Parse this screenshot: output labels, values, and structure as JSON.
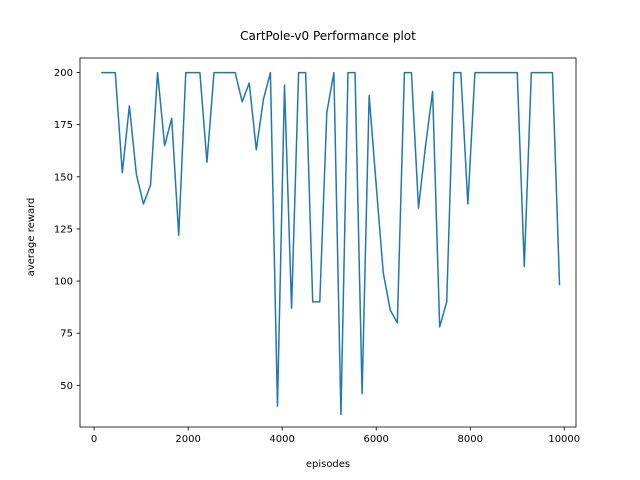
{
  "chart_data": {
    "type": "line",
    "title": "CartPole-v0 Performance plot",
    "xlabel": "episodes",
    "ylabel": "average reward",
    "xlim": [
      -300,
      10250
    ],
    "ylim": [
      30,
      207
    ],
    "xticks": [
      0,
      2000,
      4000,
      6000,
      8000,
      10000
    ],
    "yticks": [
      50,
      75,
      100,
      125,
      150,
      175,
      200
    ],
    "grid": false,
    "line_color": "#1f77b4",
    "series": [
      {
        "x": [
          150,
          300,
          450,
          600,
          750,
          900,
          1050,
          1200,
          1350,
          1500,
          1650,
          1800,
          1950,
          2100,
          2250,
          2400,
          2550,
          2700,
          2850,
          3000,
          3150,
          3300,
          3450,
          3600,
          3750,
          3900,
          4050,
          4200,
          4350,
          4500,
          4650,
          4800,
          4950,
          5100,
          5250,
          5400,
          5550,
          5700,
          5850,
          6000,
          6150,
          6300,
          6450,
          6600,
          6750,
          6900,
          7050,
          7200,
          7350,
          7500,
          7650,
          7800,
          7950,
          8100,
          8250,
          8400,
          8550,
          8700,
          8850,
          9000,
          9150,
          9300,
          9450,
          9600,
          9750,
          9900
        ],
        "y": [
          200,
          200,
          200,
          152,
          184,
          151,
          137,
          146,
          200,
          165,
          178,
          122,
          200,
          200,
          200,
          157,
          200,
          200,
          200,
          200,
          186,
          195,
          163,
          187,
          200,
          40,
          194,
          87,
          200,
          200,
          90,
          90,
          181,
          200,
          36,
          200,
          200,
          46,
          189,
          146,
          104,
          86,
          80,
          200,
          200,
          135,
          165,
          191,
          78,
          90,
          200,
          200,
          137,
          200,
          200,
          200,
          200,
          200,
          200,
          200,
          107,
          200,
          200,
          200,
          200,
          98
        ]
      }
    ]
  }
}
